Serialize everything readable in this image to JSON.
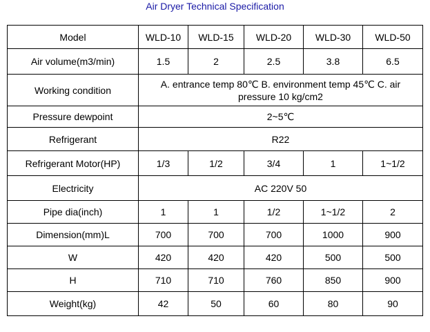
{
  "title": "Air Dryer Technical Specification",
  "header": {
    "label": "Model",
    "models": [
      "WLD-10",
      "WLD-15",
      "WLD-20",
      "WLD-30",
      "WLD-50"
    ]
  },
  "rows": {
    "air_volume": {
      "label": "Air volume(m3/min)",
      "values": [
        "1.5",
        "2",
        "2.5",
        "3.8",
        "6.5"
      ]
    },
    "working_condition": {
      "label": "Working condition",
      "value": "A. entrance temp 80℃   B. environment temp 45℃   C. air pressure 10 kg/cm2"
    },
    "pressure_dewpoint": {
      "label": "Pressure dewpoint",
      "value": "2~5℃"
    },
    "refrigerant": {
      "label": "Refrigerant",
      "value": "R22"
    },
    "refrigerant_motor": {
      "label": "Refrigerant Motor(HP)",
      "values": [
        "1/3",
        "1/2",
        "3/4",
        "1",
        "1~1/2"
      ]
    },
    "electricity": {
      "label": "Electricity",
      "value": "AC 220V 50"
    },
    "pipe_dia": {
      "label": "Pipe dia(inch)",
      "values": [
        "1",
        "1",
        "1/2",
        "1~1/2",
        "2"
      ]
    },
    "dimension_l": {
      "label": "Dimension(mm)L",
      "values": [
        "700",
        "700",
        "700",
        "1000",
        "900"
      ]
    },
    "w": {
      "label": "W",
      "values": [
        "420",
        "420",
        "420",
        "500",
        "500"
      ]
    },
    "h": {
      "label": "H",
      "values": [
        "710",
        "710",
        "760",
        "850",
        "900"
      ]
    },
    "weight": {
      "label": "Weight(kg)",
      "values": [
        "42",
        "50",
        "60",
        "80",
        "90"
      ]
    }
  },
  "colors": {
    "title": "#1a1aa6",
    "border": "#000000",
    "text": "#000000"
  }
}
